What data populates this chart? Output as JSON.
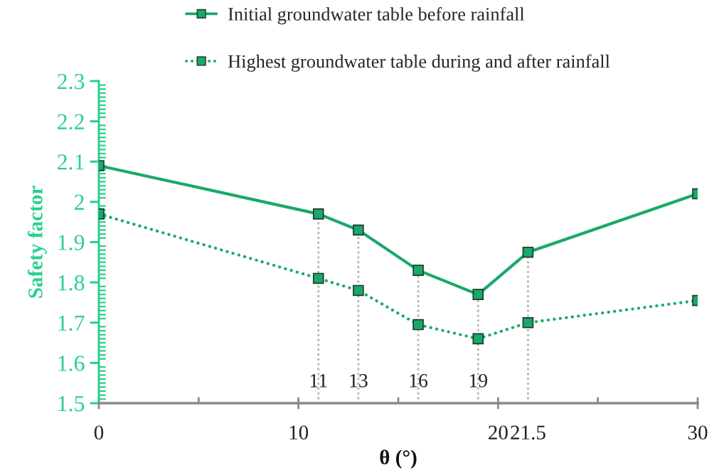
{
  "chart_data": {
    "type": "line",
    "xlabel": "θ (°)",
    "ylabel": "Safety factor",
    "x": [
      0,
      11,
      13,
      16,
      19,
      21.5,
      30
    ],
    "series": [
      {
        "name": "Initial groundwater table before rainfall",
        "color": "#19a96a",
        "line_style": "solid",
        "values": [
          2.09,
          1.97,
          1.93,
          1.83,
          1.77,
          1.875,
          2.02
        ]
      },
      {
        "name": "Highest groundwater table during and after rainfall",
        "color": "#19a96a",
        "line_style": "dotted",
        "values": [
          1.97,
          1.81,
          1.78,
          1.695,
          1.66,
          1.7,
          1.755
        ]
      }
    ],
    "marker": "square",
    "legend": "top",
    "xlim": [
      0,
      30
    ],
    "xticks": [
      0,
      {
        "value": 5,
        "label": null
      },
      10,
      {
        "value": 15,
        "label": null
      },
      20,
      21.5,
      {
        "value": 25,
        "label": null
      },
      30
    ],
    "ylim": [
      1.5,
      2.3
    ],
    "yticks": [
      1.5,
      1.6,
      1.7,
      1.8,
      1.9,
      2,
      2.1,
      2.2,
      2.3,
      {
        "value": 1.51,
        "label": null
      },
      {
        "value": 1.52,
        "label": null
      },
      {
        "value": 1.53,
        "label": null
      },
      {
        "value": 1.54,
        "label": null
      },
      {
        "value": 1.55,
        "label": null
      },
      {
        "value": 1.56,
        "label": null
      },
      {
        "value": 1.57,
        "label": null
      },
      {
        "value": 1.58,
        "label": null
      },
      {
        "value": 1.59,
        "label": null
      },
      {
        "value": 1.61,
        "label": null
      },
      {
        "value": 1.62,
        "label": null
      },
      {
        "value": 1.63,
        "label": null
      },
      {
        "value": 1.64,
        "label": null
      },
      {
        "value": 1.65,
        "label": null
      },
      {
        "value": 1.66,
        "label": null
      },
      {
        "value": 1.67,
        "label": null
      },
      {
        "value": 1.68,
        "label": null
      },
      {
        "value": 1.69,
        "label": null
      },
      {
        "value": 1.71,
        "label": null
      },
      {
        "value": 1.72,
        "label": null
      },
      {
        "value": 1.73,
        "label": null
      },
      {
        "value": 1.74,
        "label": null
      },
      {
        "value": 1.75,
        "label": null
      },
      {
        "value": 1.76,
        "label": null
      },
      {
        "value": 1.77,
        "label": null
      },
      {
        "value": 1.78,
        "label": null
      },
      {
        "value": 1.79,
        "label": null
      },
      {
        "value": 1.81,
        "label": null
      },
      {
        "value": 1.82,
        "label": null
      },
      {
        "value": 1.83,
        "label": null
      },
      {
        "value": 1.84,
        "label": null
      },
      {
        "value": 1.85,
        "label": null
      },
      {
        "value": 1.86,
        "label": null
      },
      {
        "value": 1.87,
        "label": null
      },
      {
        "value": 1.88,
        "label": null
      },
      {
        "value": 1.89,
        "label": null
      },
      {
        "value": 1.91,
        "label": null
      },
      {
        "value": 1.92,
        "label": null
      },
      {
        "value": 1.93,
        "label": null
      },
      {
        "value": 1.94,
        "label": null
      },
      {
        "value": 1.95,
        "label": null
      },
      {
        "value": 1.96,
        "label": null
      },
      {
        "value": 1.97,
        "label": null
      },
      {
        "value": 1.98,
        "label": null
      },
      {
        "value": 1.99,
        "label": null
      },
      {
        "value": 2.01,
        "label": null
      },
      {
        "value": 2.02,
        "label": null
      },
      {
        "value": 2.03,
        "label": null
      },
      {
        "value": 2.04,
        "label": null
      },
      {
        "value": 2.05,
        "label": null
      },
      {
        "value": 2.06,
        "label": null
      },
      {
        "value": 2.07,
        "label": null
      },
      {
        "value": 2.08,
        "label": null
      },
      {
        "value": 2.09,
        "label": null
      },
      {
        "value": 2.11,
        "label": null
      },
      {
        "value": 2.12,
        "label": null
      },
      {
        "value": 2.13,
        "label": null
      },
      {
        "value": 2.14,
        "label": null
      },
      {
        "value": 2.15,
        "label": null
      },
      {
        "value": 2.16,
        "label": null
      },
      {
        "value": 2.17,
        "label": null
      },
      {
        "value": 2.18,
        "label": null
      },
      {
        "value": 2.19,
        "label": null
      },
      {
        "value": 2.21,
        "label": null
      },
      {
        "value": 2.22,
        "label": null
      },
      {
        "value": 2.23,
        "label": null
      },
      {
        "value": 2.24,
        "label": null
      },
      {
        "value": 2.25,
        "label": null
      },
      {
        "value": 2.26,
        "label": null
      },
      {
        "value": 2.27,
        "label": null
      },
      {
        "value": 2.28,
        "label": null
      },
      {
        "value": 2.29,
        "label": null
      }
    ],
    "ref_lines": [
      {
        "axis": "x",
        "value": 11,
        "label": "11",
        "color": "#b8b8b8",
        "line_style": "dotted"
      },
      {
        "axis": "x",
        "value": 13,
        "label": "13",
        "color": "#b8b8b8",
        "line_style": "dotted"
      },
      {
        "axis": "x",
        "value": 16,
        "label": "16",
        "color": "#b8b8b8",
        "line_style": "dotted"
      },
      {
        "axis": "x",
        "value": 19,
        "label": "19",
        "color": "#b8b8b8",
        "line_style": "dotted"
      },
      {
        "axis": "x",
        "value": 21.5,
        "label": null,
        "color": "#b8b8b8",
        "line_style": "dotted"
      }
    ]
  }
}
